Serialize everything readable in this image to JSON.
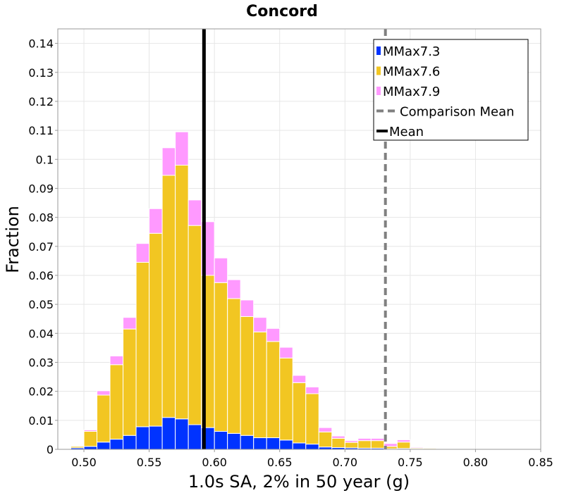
{
  "chart_data": {
    "type": "bar",
    "stacked": true,
    "title": "Concord",
    "xlabel": "1.0s SA, 2% in 50 year (g)",
    "ylabel": "Fraction",
    "xlim": [
      0.48,
      0.85
    ],
    "ylim": [
      0,
      0.145
    ],
    "bin_width": 0.01,
    "grid": true,
    "legend_position": "top-right",
    "x_ticks": [
      0.5,
      0.55,
      0.6,
      0.65,
      0.7,
      0.75,
      0.8,
      0.85
    ],
    "x_tick_labels": [
      "0.50",
      "0.55",
      "0.60",
      "0.65",
      "0.70",
      "0.75",
      "0.80",
      "0.85"
    ],
    "y_ticks": [
      0,
      0.01,
      0.02,
      0.03,
      0.04,
      0.05,
      0.06,
      0.07,
      0.08,
      0.09,
      0.1,
      0.11,
      0.12,
      0.13,
      0.14
    ],
    "y_tick_labels": [
      "0",
      "0.01",
      "0.02",
      "0.03",
      "0.04",
      "0.05",
      "0.06",
      "0.07",
      "0.08",
      "0.09",
      "0.1",
      "0.11",
      "0.12",
      "0.13",
      "0.14"
    ],
    "bins": [
      0.495,
      0.505,
      0.515,
      0.525,
      0.535,
      0.545,
      0.555,
      0.565,
      0.575,
      0.585,
      0.595,
      0.605,
      0.615,
      0.625,
      0.635,
      0.645,
      0.655,
      0.665,
      0.675,
      0.685,
      0.695,
      0.705,
      0.715,
      0.725,
      0.735,
      0.745,
      0.755,
      0.765
    ],
    "series": [
      {
        "name": "MMax7.3",
        "color": "#0033ff",
        "values": [
          0.0005,
          0.001,
          0.0025,
          0.0035,
          0.0048,
          0.0078,
          0.008,
          0.011,
          0.0105,
          0.0085,
          0.0075,
          0.0062,
          0.0055,
          0.0048,
          0.004,
          0.004,
          0.0032,
          0.0022,
          0.0018,
          0.0008,
          0.0006,
          0.0005,
          0.0004,
          0.0004,
          0.0002,
          0.0003,
          0.0002,
          0.0001
        ]
      },
      {
        "name": "MMax7.6",
        "color": "#f2c622",
        "values": [
          0.0005,
          0.0052,
          0.0162,
          0.0257,
          0.0367,
          0.0567,
          0.0665,
          0.0835,
          0.0875,
          0.0687,
          0.0525,
          0.0513,
          0.0465,
          0.041,
          0.0365,
          0.0332,
          0.0283,
          0.0208,
          0.0174,
          0.0052,
          0.0032,
          0.0019,
          0.0026,
          0.0026,
          0.0008,
          0.0022,
          0.0003,
          0.0003
        ]
      },
      {
        "name": "MMax7.9",
        "color": "#ff99ff",
        "values": [
          0,
          0.0005,
          0.0015,
          0.003,
          0.004,
          0.0065,
          0.0085,
          0.0095,
          0.0115,
          0.0088,
          0.0185,
          0.0085,
          0.0065,
          0.0057,
          0.005,
          0.0045,
          0.0037,
          0.0025,
          0.0023,
          0.0015,
          0.0008,
          0.0006,
          0.0008,
          0.0008,
          0.001,
          0.0008,
          0.0003,
          0.0002
        ]
      }
    ],
    "lines": [
      {
        "name": "Comparison Mean",
        "x": 0.731,
        "color": "#808080",
        "style": "dashed"
      },
      {
        "name": "Mean",
        "x": 0.592,
        "color": "#000000",
        "style": "solid"
      }
    ]
  }
}
